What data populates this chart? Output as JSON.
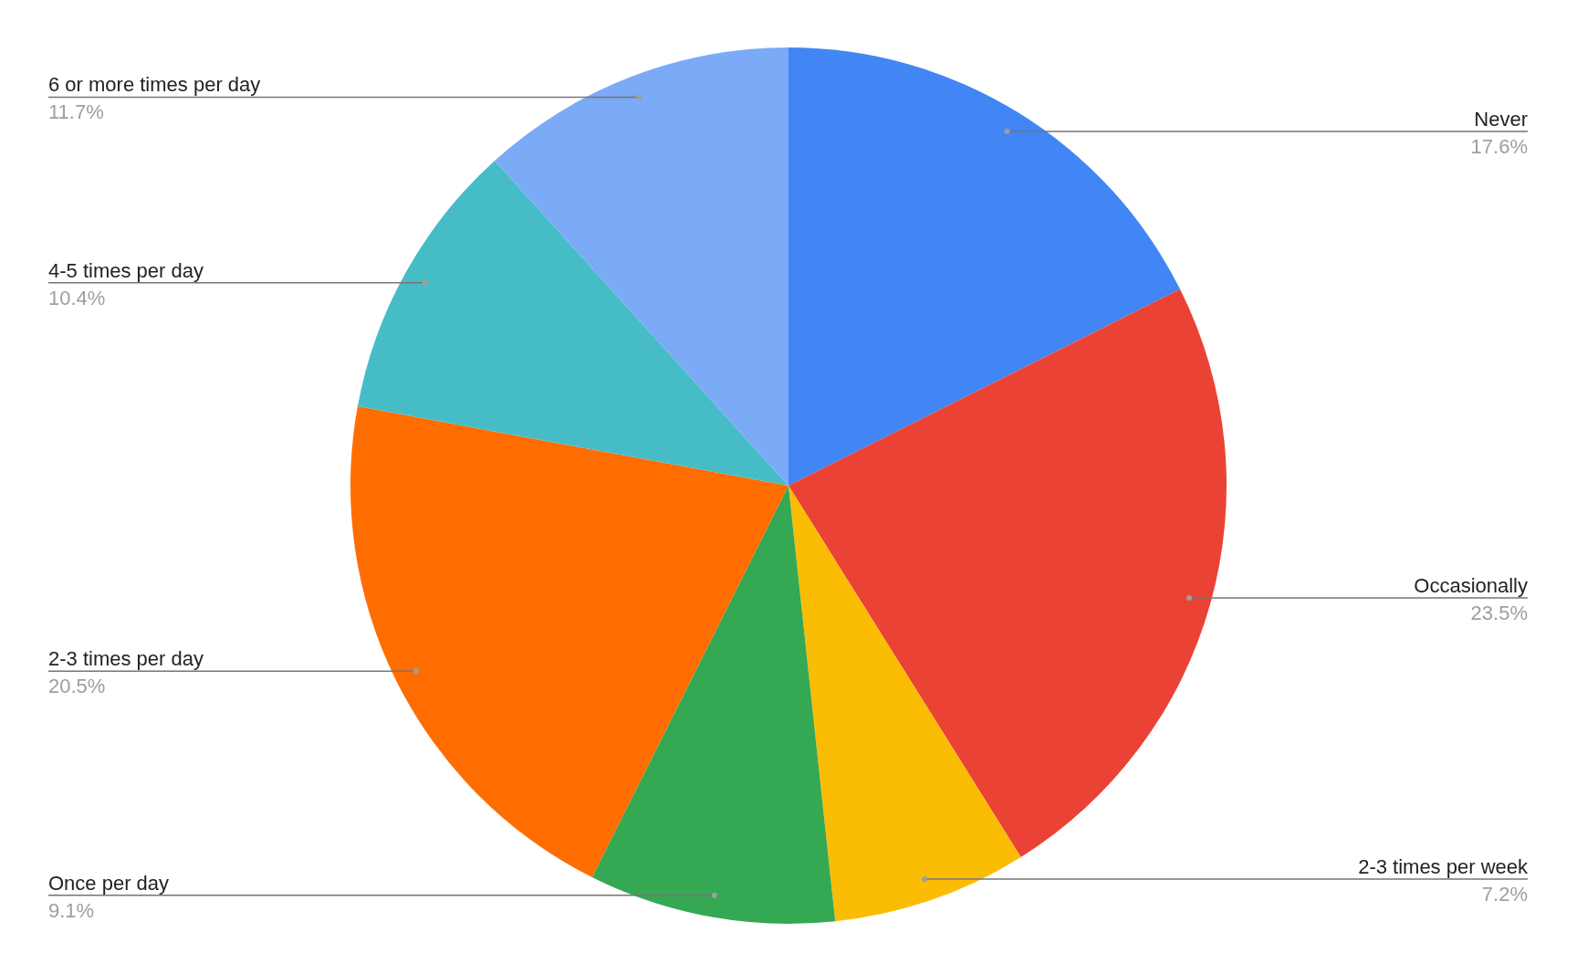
{
  "chart_data": {
    "type": "pie",
    "categories": [
      "Never",
      "Occasionally",
      "2-3 times per week",
      "Once per day",
      "2-3 times per day",
      "4-5 times per day",
      "6 or more times per day"
    ],
    "values": [
      17.6,
      23.5,
      7.2,
      9.1,
      20.5,
      10.4,
      11.7
    ],
    "colors": [
      "#4285f4",
      "#ea4335",
      "#fbbc04",
      "#34a853",
      "#ff6d01",
      "#46bdc6",
      "#7baaf7"
    ],
    "value_labels": [
      "17.6%",
      "23.5%",
      "7.2%",
      "9.1%",
      "20.5%",
      "10.4%",
      "11.7%"
    ]
  }
}
